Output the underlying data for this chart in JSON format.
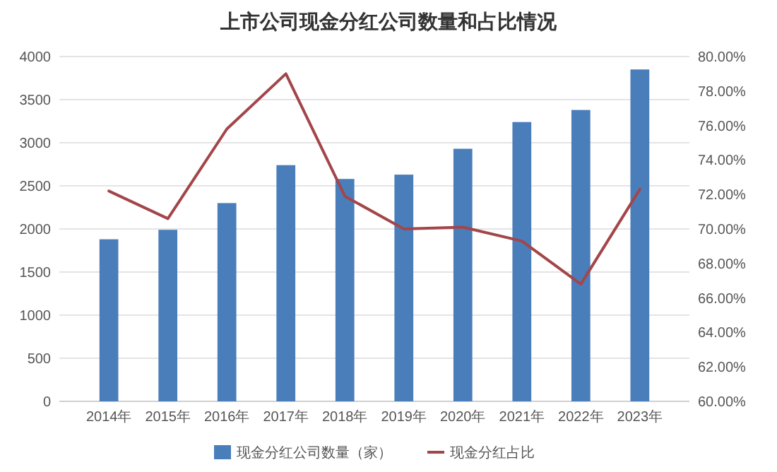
{
  "chart_data": {
    "type": "bar",
    "title": "上市公司现金分红公司数量和占比情况",
    "categories": [
      "2014年",
      "2015年",
      "2016年",
      "2017年",
      "2018年",
      "2019年",
      "2020年",
      "2021年",
      "2022年",
      "2023年"
    ],
    "series": [
      {
        "name": "现金分红公司数量（家）",
        "color": "#4a7ebb",
        "values": [
          1880,
          1990,
          2300,
          2740,
          2580,
          2630,
          2930,
          3240,
          3380,
          3850
        ]
      },
      {
        "name": "现金分红占比",
        "type": "line",
        "axis": "y2",
        "color": "#a3464a",
        "values": [
          72.2,
          70.6,
          75.8,
          79.0,
          71.9,
          70.0,
          70.1,
          69.3,
          66.8,
          72.3
        ]
      }
    ],
    "ylim": [
      0,
      4000
    ],
    "yticks": [
      0,
      500,
      1000,
      1500,
      2000,
      2500,
      3000,
      3500,
      4000
    ],
    "y2lim": [
      60,
      80
    ],
    "y2ticks": [
      {
        "value": 60,
        "label": "60.00%"
      },
      {
        "value": 62,
        "label": "62.00%"
      },
      {
        "value": 64,
        "label": "64.00%"
      },
      {
        "value": 66,
        "label": "66.00%"
      },
      {
        "value": 68,
        "label": "68.00%"
      },
      {
        "value": 70,
        "label": "70.00%"
      },
      {
        "value": 72,
        "label": "72.00%"
      },
      {
        "value": 74,
        "label": "74.00%"
      },
      {
        "value": 76,
        "label": "76.00%"
      },
      {
        "value": 78,
        "label": "78.00%"
      },
      {
        "value": 80,
        "label": "80.00%"
      }
    ],
    "grid": "y",
    "legend": "bottom"
  }
}
